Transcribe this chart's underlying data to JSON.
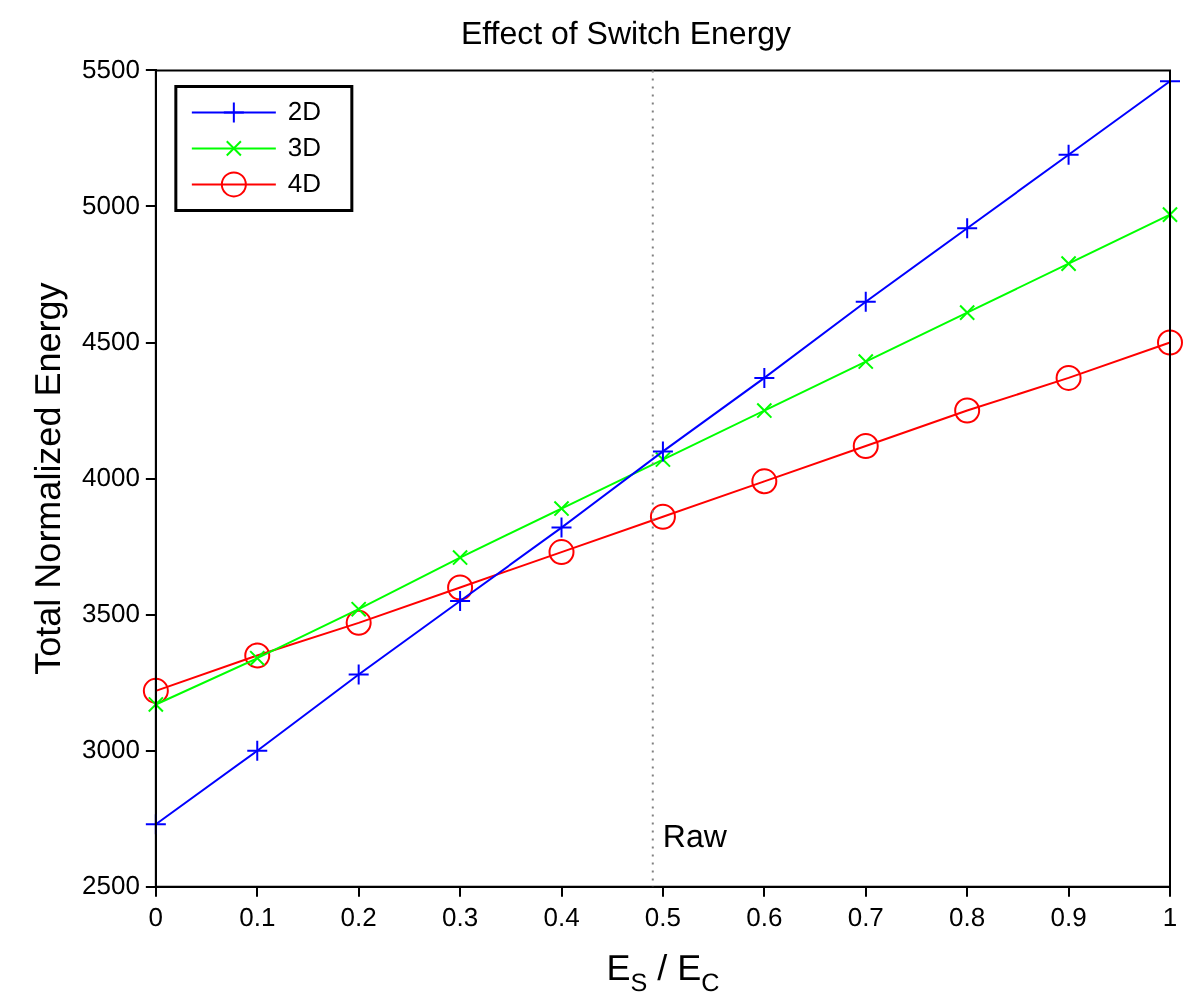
{
  "chart_data": {
    "type": "line",
    "title": "Effect of Switch Energy",
    "xlabel": "E$_{S}$ / E$_{C}$",
    "ylabel": "Total Normalized Energy",
    "x": [
      0,
      0.1,
      0.2,
      0.3,
      0.4,
      0.5,
      0.6,
      0.7,
      0.8,
      0.9,
      1
    ],
    "series": [
      {
        "name": "2D",
        "color": "#0000ff",
        "marker": "cross",
        "values": [
          2730,
          3000,
          3280,
          3550,
          3820,
          4100,
          4370,
          4650,
          4920,
          5190,
          5460
        ]
      },
      {
        "name": "3D",
        "color": "#00ff00",
        "marker": "x",
        "values": [
          3170,
          3340,
          3520,
          3710,
          3890,
          4070,
          4250,
          4430,
          4610,
          4790,
          4970
        ]
      },
      {
        "name": "4D",
        "color": "#ff0000",
        "marker": "circle",
        "values": [
          3220,
          3350,
          3470,
          3600,
          3730,
          3860,
          3990,
          4120,
          4250,
          4370,
          4500
        ]
      }
    ],
    "xlim": [
      0,
      1
    ],
    "xticks": [
      0,
      0.1,
      0.2,
      0.3,
      0.4,
      0.5,
      0.6,
      0.7,
      0.8,
      0.9,
      1
    ],
    "ylim": [
      2500,
      5500
    ],
    "yticks": [
      2500,
      3000,
      3500,
      4000,
      4500,
      5000,
      5500
    ],
    "ref_lines": [
      {
        "axis": "x",
        "value": 0.49,
        "label": "Raw",
        "color": "#808080",
        "line_style": "dotted"
      }
    ],
    "legend": "top left",
    "grid": false,
    "line_style": "solid"
  }
}
